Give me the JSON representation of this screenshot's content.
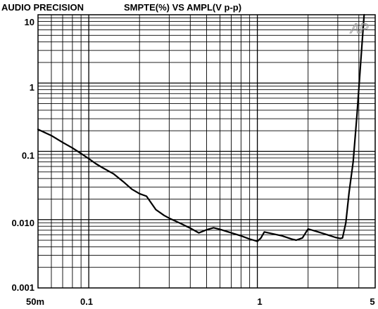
{
  "header": {
    "brand": "AUDIO PRECISION",
    "title": "SMPTE(%) VS AMPL(V p-p)",
    "watermark": "AP"
  },
  "chart_data": {
    "type": "line",
    "title": "SMPTE(%) VS AMPL(V p-p)",
    "xlabel": "",
    "ylabel": "",
    "xscale": "log",
    "yscale": "log",
    "xlim": [
      0.05,
      5
    ],
    "ylim": [
      0.001,
      10
    ],
    "grid": true,
    "x_tick_labels": [
      "50m",
      "0.1",
      "1",
      "5"
    ],
    "y_tick_labels": [
      "10",
      "1",
      "0.1",
      "0.010",
      "0.001"
    ],
    "line_color": "#000000",
    "series": [
      {
        "x": [
          0.05,
          0.06,
          0.07,
          0.08,
          0.09,
          0.1,
          0.11,
          0.12,
          0.14,
          0.16,
          0.18,
          0.2,
          0.22,
          0.25,
          0.28,
          0.3,
          0.35,
          0.4,
          0.45,
          0.5,
          0.55,
          0.6,
          0.7,
          0.8,
          0.9,
          0.95,
          1.0,
          1.05,
          1.1,
          1.2,
          1.4,
          1.6,
          1.7,
          1.85,
          2.0,
          2.3,
          2.6,
          2.9,
          3.1,
          3.2,
          3.35,
          3.5,
          3.7,
          3.9,
          4.1,
          4.3
        ],
        "y": [
          0.21,
          0.17,
          0.135,
          0.112,
          0.093,
          0.078,
          0.066,
          0.058,
          0.047,
          0.036,
          0.028,
          0.024,
          0.022,
          0.014,
          0.0115,
          0.0105,
          0.0088,
          0.0075,
          0.0064,
          0.0071,
          0.0076,
          0.0072,
          0.0064,
          0.0058,
          0.0052,
          0.005,
          0.0048,
          0.0054,
          0.0066,
          0.0063,
          0.0058,
          0.0052,
          0.005,
          0.0054,
          0.0073,
          0.0066,
          0.006,
          0.0055,
          0.0053,
          0.0054,
          0.009,
          0.025,
          0.07,
          0.35,
          2.0,
          10
        ]
      }
    ]
  }
}
